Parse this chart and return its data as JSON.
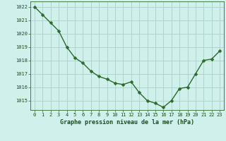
{
  "x": [
    0,
    1,
    2,
    3,
    4,
    5,
    6,
    7,
    8,
    9,
    10,
    11,
    12,
    13,
    14,
    15,
    16,
    17,
    18,
    19,
    20,
    21,
    22,
    23
  ],
  "y": [
    1022.0,
    1021.4,
    1020.8,
    1020.2,
    1019.0,
    1018.2,
    1017.8,
    1017.2,
    1016.8,
    1016.6,
    1016.3,
    1016.2,
    1016.4,
    1015.6,
    1015.0,
    1014.8,
    1014.5,
    1015.0,
    1015.9,
    1016.0,
    1017.0,
    1018.0,
    1018.1,
    1018.7
  ],
  "line_color": "#2d6a2d",
  "marker": "D",
  "marker_size": 2.5,
  "bg_color": "#cff0eb",
  "grid_color": "#aacfc9",
  "title": "Graphe pression niveau de la mer (hPa)",
  "xlim": [
    -0.5,
    23.5
  ],
  "ylim": [
    1014.3,
    1022.4
  ],
  "yticks": [
    1015,
    1016,
    1017,
    1018,
    1019,
    1020,
    1021,
    1022
  ],
  "xticks": [
    0,
    1,
    2,
    3,
    4,
    5,
    6,
    7,
    8,
    9,
    10,
    11,
    12,
    13,
    14,
    15,
    16,
    17,
    18,
    19,
    20,
    21,
    22,
    23
  ],
  "tick_fontsize": 5.0,
  "title_fontsize": 6.0,
  "title_color": "#1a4d1a",
  "tick_color": "#1a4d1a",
  "axis_color": "#2d6a2d",
  "line_width": 1.0
}
